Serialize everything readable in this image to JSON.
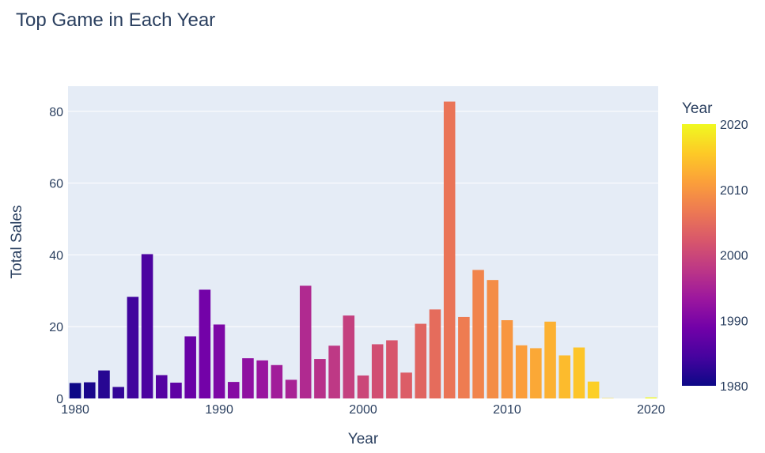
{
  "chart_data": {
    "type": "bar",
    "title": "Top Game in Each Year",
    "xlabel": "Year",
    "ylabel": "Total Sales",
    "xlim": [
      1979.5,
      2020.5
    ],
    "ylim": [
      0,
      87
    ],
    "x_ticks": [
      "1980",
      "1990",
      "2000",
      "2010",
      "2020"
    ],
    "y_ticks": [
      "0",
      "20",
      "40",
      "60",
      "80"
    ],
    "grid": true,
    "colorbar": {
      "title": "Year",
      "ticks": [
        "1980",
        "1990",
        "2000",
        "2010",
        "2020"
      ],
      "range": [
        1980,
        2020
      ],
      "colors": [
        "#0d0887",
        "#46039f",
        "#7201a8",
        "#9c179e",
        "#bd3786",
        "#d8576b",
        "#ed7953",
        "#fb9f3a",
        "#fdca26",
        "#f0f921"
      ]
    },
    "x": [
      1980,
      1981,
      1982,
      1983,
      1984,
      1985,
      1986,
      1987,
      1988,
      1989,
      1990,
      1991,
      1992,
      1993,
      1994,
      1995,
      1996,
      1997,
      1998,
      1999,
      2000,
      2001,
      2002,
      2003,
      2004,
      2005,
      2006,
      2007,
      2008,
      2009,
      2010,
      2011,
      2012,
      2013,
      2014,
      2015,
      2016,
      2017,
      2020
    ],
    "values": [
      4.3,
      4.5,
      7.8,
      3.2,
      28.3,
      40.2,
      6.5,
      4.4,
      17.3,
      30.3,
      20.6,
      4.6,
      11.2,
      10.6,
      9.3,
      5.2,
      31.4,
      11.0,
      14.7,
      23.1,
      6.4,
      15.1,
      16.2,
      7.2,
      20.8,
      24.8,
      82.7,
      22.7,
      35.8,
      33.0,
      21.8,
      14.8,
      14.0,
      21.4,
      12.0,
      14.2,
      4.7,
      0.1,
      0.3
    ]
  }
}
